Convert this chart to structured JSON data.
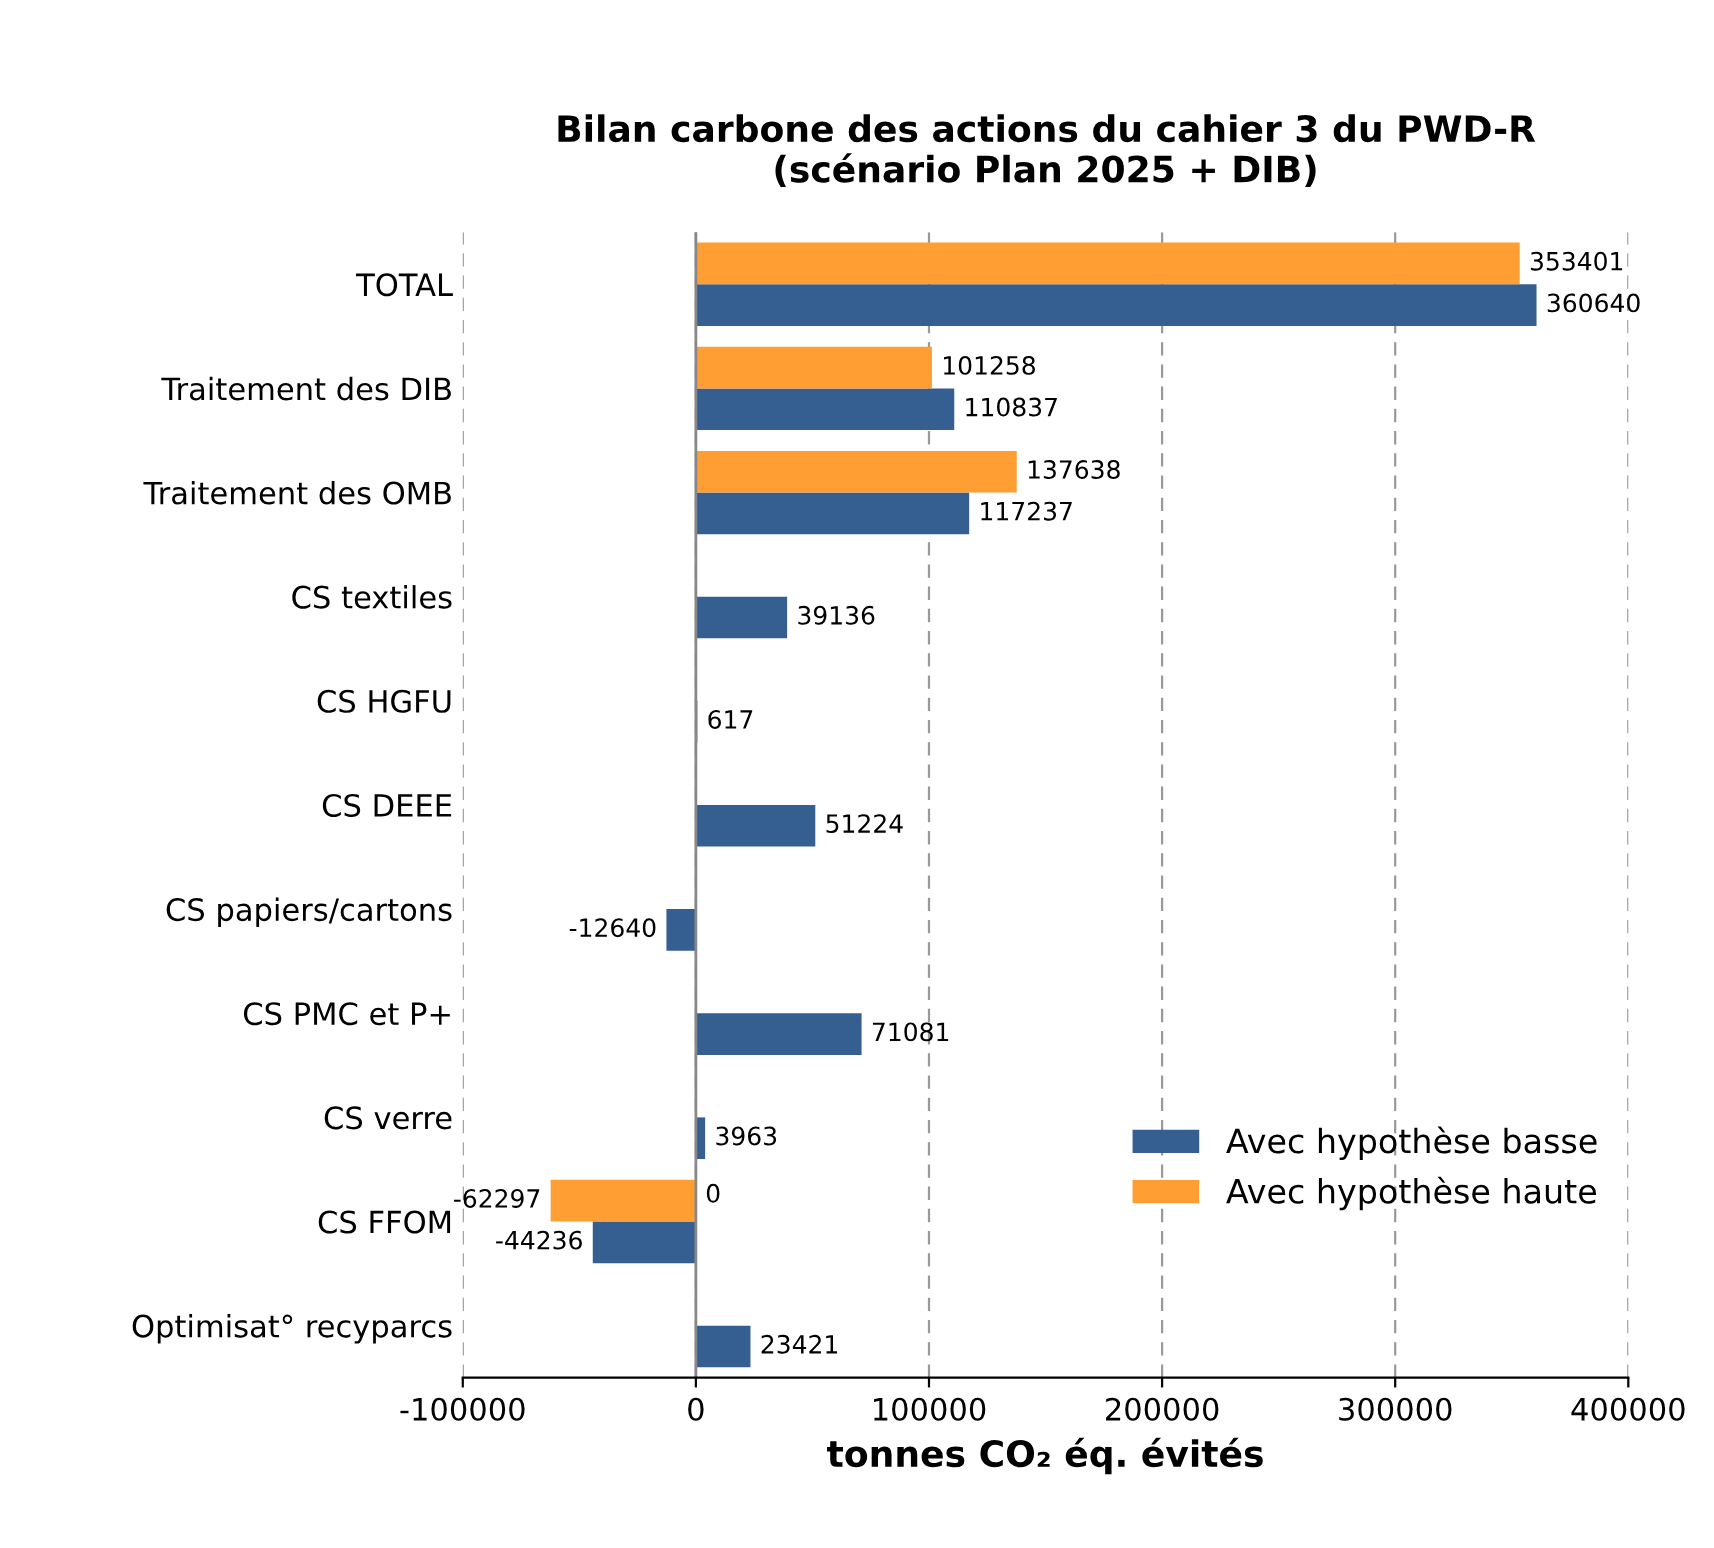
{
  "chart_data": {
    "type": "bar",
    "orientation": "horizontal",
    "title": "Bilan carbone des actions du cahier 3 du PWD-R\n(scénario Plan 2025 + DIB)",
    "xlabel": "tonnes CO₂ éq. évités",
    "categories": [
      "TOTAL",
      "Traitement des DIB",
      "Traitement des OMB",
      "CS textiles",
      "CS HGFU",
      "CS DEEE",
      "CS papiers/cartons",
      "CS PMC et P+",
      "CS verre",
      "CS FFOM",
      "Optimisat° recyparcs"
    ],
    "series": [
      {
        "name": "Avec hypothèse basse",
        "color": "#365f91",
        "values": [
          360640,
          110837,
          117237,
          39136,
          617,
          51224,
          -12640,
          71081,
          3963,
          -44236,
          23421
        ]
      },
      {
        "name": "Avec hypothèse haute",
        "color": "#ff9f33",
        "values": [
          353401,
          101258,
          137638,
          null,
          null,
          null,
          null,
          null,
          null,
          -62297,
          null
        ]
      }
    ],
    "annotations": [
      {
        "text": "0",
        "x": 0,
        "y": "CS FFOM"
      }
    ],
    "xlim": [
      -100000,
      400000
    ],
    "xticks": [
      -100000,
      0,
      100000,
      200000,
      300000,
      400000
    ],
    "grid": "x",
    "legend": "lower right",
    "data_labels": true
  }
}
